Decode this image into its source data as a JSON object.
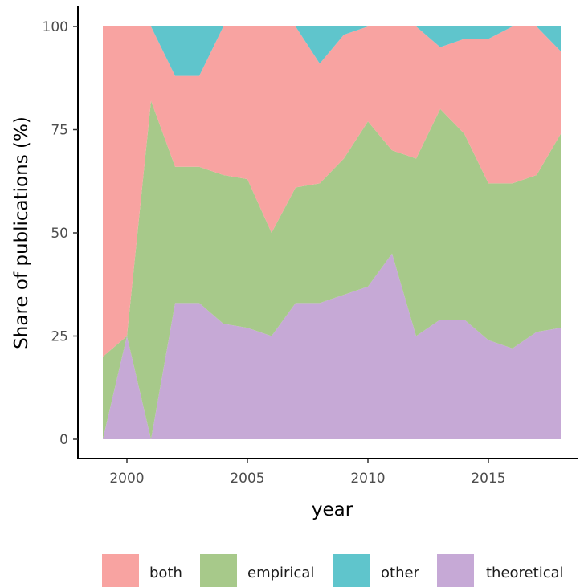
{
  "chart_data": {
    "type": "area",
    "stacked": true,
    "percent_stacked": true,
    "xlabel": "year",
    "ylabel": "Share of publications (%)",
    "x": [
      1999,
      2000,
      2001,
      2002,
      2003,
      2004,
      2005,
      2006,
      2007,
      2008,
      2009,
      2010,
      2011,
      2012,
      2013,
      2014,
      2015,
      2016,
      2017,
      2018
    ],
    "xlim": [
      1999,
      2018
    ],
    "ylim": [
      0,
      100
    ],
    "x_ticks": [
      2000,
      2005,
      2010,
      2015
    ],
    "y_ticks": [
      0,
      25,
      50,
      75,
      100
    ],
    "grid": false,
    "legend_position": "bottom",
    "stack_order_bottom_to_top": [
      "theoretical",
      "empirical",
      "both",
      "other"
    ],
    "series": [
      {
        "name": "both",
        "color": "#F8A3A1",
        "values": [
          80,
          75,
          18,
          22,
          22,
          36,
          37,
          50,
          39,
          29,
          30,
          23,
          30,
          32,
          15,
          23,
          35,
          38,
          36,
          20
        ]
      },
      {
        "name": "empirical",
        "color": "#A7C98A",
        "values": [
          20,
          0,
          82,
          33,
          33,
          36,
          36,
          25,
          28,
          29,
          33,
          40,
          25,
          43,
          51,
          45,
          38,
          40,
          38,
          47
        ]
      },
      {
        "name": "other",
        "color": "#5FC5CC",
        "values": [
          0,
          0,
          0,
          12,
          12,
          0,
          0,
          0,
          0,
          9,
          2,
          0,
          0,
          0,
          5,
          3,
          3,
          0,
          0,
          6
        ]
      },
      {
        "name": "theoretical",
        "color": "#C6A9D6",
        "values": [
          0,
          25,
          0,
          33,
          33,
          28,
          27,
          25,
          33,
          33,
          35,
          37,
          45,
          25,
          29,
          29,
          24,
          22,
          26,
          27
        ]
      }
    ],
    "legend": [
      "both",
      "empirical",
      "other",
      "theoretical"
    ]
  }
}
